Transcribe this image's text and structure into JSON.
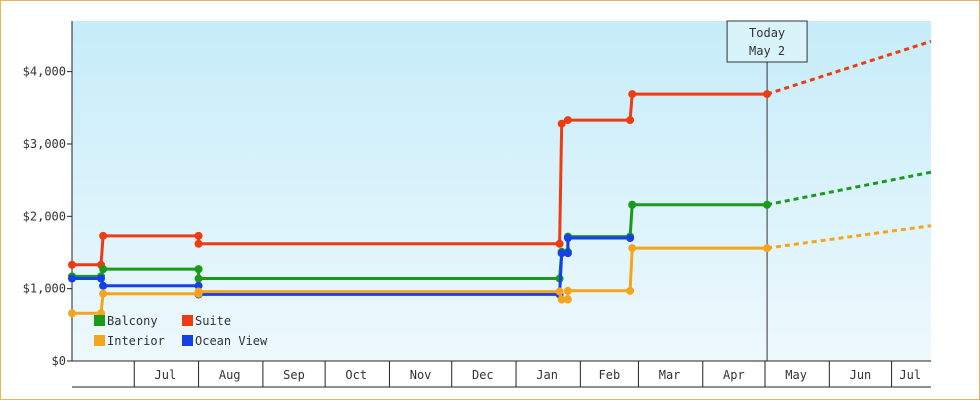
{
  "chart_data": {
    "type": "line",
    "title": "",
    "xlabel": "",
    "ylabel": "",
    "x_ticks": [
      "Jul",
      "Aug",
      "Sep",
      "Oct",
      "Nov",
      "Dec",
      "Jan",
      "Feb",
      "Mar",
      "Apr",
      "May",
      "Jun",
      "Jul"
    ],
    "y_ticks": [
      "$0",
      "$1,000",
      "$2,000",
      "$3,000",
      "$4,000"
    ],
    "ylim": [
      0,
      4700
    ],
    "xlim": [
      "2024-06-01",
      "2025-07-20"
    ],
    "grid": false,
    "step": true,
    "today": {
      "line1": "Today",
      "line2": "May 2",
      "date": "2025-05-02"
    },
    "legend": {
      "placement": "bottom-left"
    },
    "series": [
      {
        "name": "Suite",
        "color": "#ef3b12",
        "points": [
          [
            "2024-06-01",
            1330
          ],
          [
            "2024-06-15",
            1330
          ],
          [
            "2024-06-16",
            1730
          ],
          [
            "2024-08-01",
            1730
          ],
          [
            "2024-08-01",
            1620
          ],
          [
            "2025-01-22",
            1620
          ],
          [
            "2025-01-23",
            3280
          ],
          [
            "2025-01-26",
            3330
          ],
          [
            "2025-02-25",
            3330
          ],
          [
            "2025-02-26",
            3690
          ],
          [
            "2025-05-02",
            3690
          ]
        ],
        "forecast": [
          [
            "2025-05-02",
            3690
          ],
          [
            "2025-07-20",
            4420
          ]
        ]
      },
      {
        "name": "Balcony",
        "color": "#1a9a1a",
        "points": [
          [
            "2024-06-01",
            1170
          ],
          [
            "2024-06-15",
            1170
          ],
          [
            "2024-06-16",
            1270
          ],
          [
            "2024-08-01",
            1270
          ],
          [
            "2024-08-01",
            1140
          ],
          [
            "2025-01-22",
            1140
          ],
          [
            "2025-01-23",
            1510
          ],
          [
            "2025-01-26",
            1510
          ],
          [
            "2025-01-26",
            1720
          ],
          [
            "2025-02-25",
            1720
          ],
          [
            "2025-02-26",
            2160
          ],
          [
            "2025-05-02",
            2160
          ]
        ],
        "forecast": [
          [
            "2025-05-02",
            2160
          ],
          [
            "2025-07-20",
            2610
          ]
        ]
      },
      {
        "name": "Ocean View",
        "color": "#1540e8",
        "points": [
          [
            "2024-06-01",
            1140
          ],
          [
            "2024-06-15",
            1140
          ],
          [
            "2024-06-16",
            1040
          ],
          [
            "2024-08-01",
            1040
          ],
          [
            "2024-08-01",
            920
          ],
          [
            "2025-01-22",
            920
          ],
          [
            "2025-01-23",
            1490
          ],
          [
            "2025-01-26",
            1490
          ],
          [
            "2025-01-26",
            1700
          ],
          [
            "2025-02-25",
            1700
          ]
        ],
        "forecast": []
      },
      {
        "name": "Interior",
        "color": "#f5a51c",
        "points": [
          [
            "2024-06-01",
            660
          ],
          [
            "2024-06-15",
            660
          ],
          [
            "2024-06-16",
            930
          ],
          [
            "2024-08-01",
            930
          ],
          [
            "2024-08-01",
            960
          ],
          [
            "2025-01-22",
            960
          ],
          [
            "2025-01-23",
            850
          ],
          [
            "2025-01-26",
            850
          ],
          [
            "2025-01-26",
            970
          ],
          [
            "2025-02-25",
            970
          ],
          [
            "2025-02-26",
            1560
          ],
          [
            "2025-05-02",
            1560
          ]
        ],
        "forecast": [
          [
            "2025-05-02",
            1560
          ],
          [
            "2025-07-20",
            1870
          ]
        ]
      }
    ],
    "legend_entries": [
      {
        "name": "Balcony",
        "color": "#1a9a1a"
      },
      {
        "name": "Suite",
        "color": "#ef3b12"
      },
      {
        "name": "Interior",
        "color": "#f5a51c"
      },
      {
        "name": "Ocean View",
        "color": "#1540e8"
      }
    ]
  }
}
